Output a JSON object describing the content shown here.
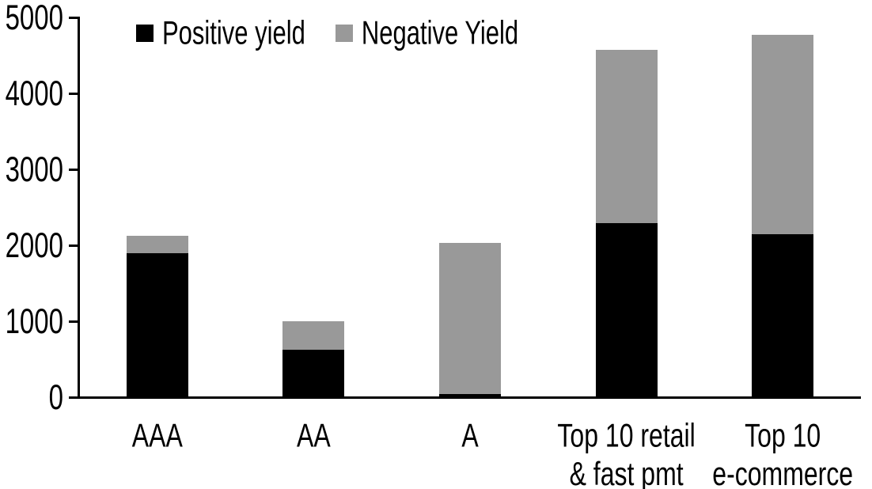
{
  "chart_data": {
    "type": "bar",
    "stacked": true,
    "title": "",
    "xlabel": "",
    "ylabel": "",
    "categories": [
      "AAA",
      "AA",
      "A",
      "Top 10 retail\n& fast pmt",
      "Top 10\ne-commerce"
    ],
    "series": [
      {
        "name": "Positive yield",
        "color": "#000000",
        "values": [
          1900,
          630,
          45,
          2290,
          2150
        ]
      },
      {
        "name": "Negative Yield",
        "color": "#999999",
        "values": [
          220,
          370,
          1990,
          2280,
          2620
        ]
      }
    ],
    "totals": [
      2120,
      1000,
      2035,
      4570,
      4770
    ],
    "ylim": [
      0,
      5000
    ],
    "yticks": [
      0,
      1000,
      2000,
      3000,
      4000,
      5000
    ],
    "grid": false,
    "legend_position": "top",
    "axis_color": "#000000",
    "background_color": "#ffffff"
  }
}
